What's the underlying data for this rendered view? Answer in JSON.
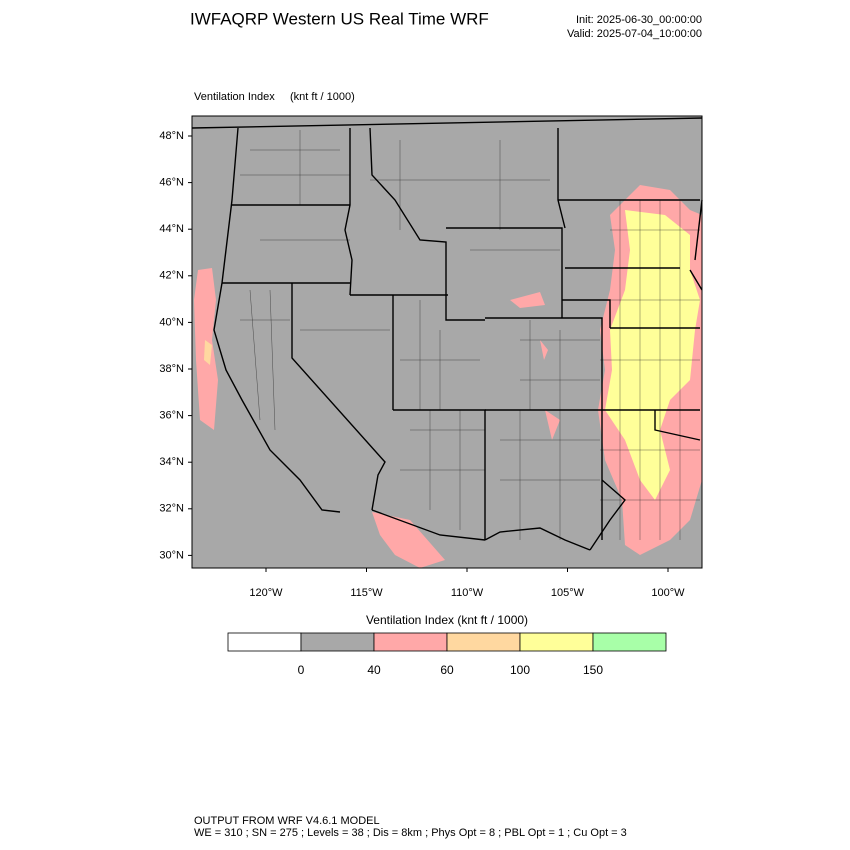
{
  "header": {
    "title": "IWFAQRP Western US Real Time WRF",
    "init": "Init: 2025-06-30_00:00:00",
    "valid": "Valid: 2025-07-04_10:00:00"
  },
  "map": {
    "field": "Ventilation Index",
    "units": "(knt ft / 1000)",
    "lat_labels": [
      "48°N",
      "46°N",
      "44°N",
      "42°N",
      "40°N",
      "38°N",
      "36°N",
      "34°N",
      "32°N",
      "30°N"
    ],
    "lon_labels": [
      "120°W",
      "115°W",
      "110°W",
      "105°W",
      "100°W"
    ]
  },
  "colorbar": {
    "title": "Ventilation Index  (knt ft / 1000)",
    "labels": [
      "0",
      "40",
      "60",
      "100",
      "150"
    ],
    "colors": [
      "#ffffff",
      "#a8a8a8",
      "#ffa8a8",
      "#ffd8a0",
      "#ffff99",
      "#a8ffa8"
    ]
  },
  "footer": {
    "line1": "OUTPUT FROM WRF V4.6.1 MODEL",
    "line2": "WE = 310 ; SN = 275 ; Levels = 38 ; Dis = 8km ; Phys Opt = 8 ; PBL Opt = 1 ; Cu Opt = 3"
  }
}
